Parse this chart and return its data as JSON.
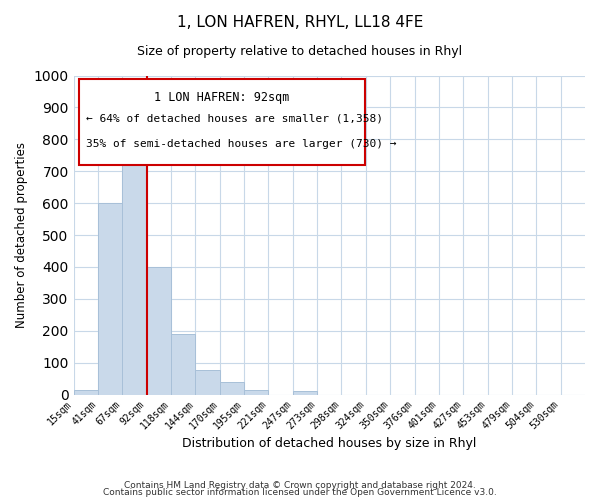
{
  "title": "1, LON HAFREN, RHYL, LL18 4FE",
  "subtitle": "Size of property relative to detached houses in Rhyl",
  "xlabel": "Distribution of detached houses by size in Rhyl",
  "ylabel": "Number of detached properties",
  "ylim": [
    0,
    1000
  ],
  "bar_color": "#c9d9ea",
  "bar_edgecolor": "#a8c0d8",
  "bar_linewidth": 0.7,
  "grid_color": "#c8d8e8",
  "annotation_box_edgecolor": "#cc0000",
  "annotation_line_color": "#cc0000",
  "annotation_text_line1": "1 LON HAFREN: 92sqm",
  "annotation_text_line2": "← 64% of detached houses are smaller (1,358)",
  "annotation_text_line3": "35% of semi-detached houses are larger (730) →",
  "footer_line1": "Contains HM Land Registry data © Crown copyright and database right 2024.",
  "footer_line2": "Contains public sector information licensed under the Open Government Licence v3.0.",
  "tick_labels": [
    "15sqm",
    "41sqm",
    "67sqm",
    "92sqm",
    "118sqm",
    "144sqm",
    "170sqm",
    "195sqm",
    "221sqm",
    "247sqm",
    "273sqm",
    "298sqm",
    "324sqm",
    "350sqm",
    "376sqm",
    "401sqm",
    "427sqm",
    "453sqm",
    "479sqm",
    "504sqm",
    "530sqm"
  ],
  "bar_heights": [
    15,
    600,
    765,
    400,
    190,
    78,
    40,
    15,
    0,
    12,
    0,
    0,
    0,
    0,
    0,
    0,
    0,
    0,
    0,
    0,
    0
  ],
  "n_bins": 21,
  "property_bin_index": 3,
  "yticks": [
    0,
    100,
    200,
    300,
    400,
    500,
    600,
    700,
    800,
    900,
    1000
  ]
}
